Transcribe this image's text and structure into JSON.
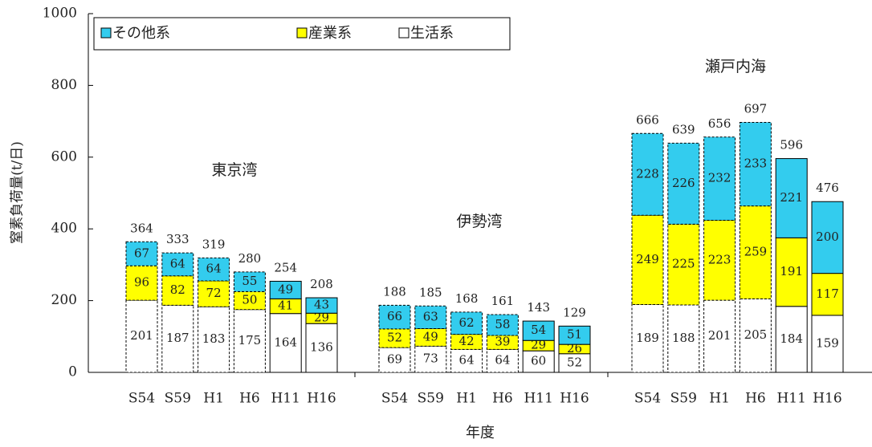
{
  "chart_data": {
    "type": "stacked-bar",
    "y_label": "窒素負荷量(t/日)",
    "x_label": "年度",
    "groups": [
      {
        "name": "東京湾",
        "categories": [
          "S54",
          "S59",
          "H1",
          "H6",
          "H11",
          "H16"
        ]
      },
      {
        "name": "伊勢湾",
        "categories": [
          "S54",
          "S59",
          "H1",
          "H6",
          "H11",
          "H16"
        ]
      },
      {
        "name": "瀬戸内海",
        "categories": [
          "S54",
          "S59",
          "H1",
          "H6",
          "H11",
          "H16"
        ]
      }
    ],
    "series": [
      {
        "name": "生活系",
        "color": "#ffffff",
        "values": [
          201,
          187,
          183,
          175,
          164,
          136,
          69,
          73,
          64,
          64,
          60,
          52,
          189,
          188,
          201,
          205,
          184,
          159
        ]
      },
      {
        "name": "産業系",
        "color": "#ffff00",
        "values": [
          96,
          82,
          72,
          50,
          41,
          29,
          52,
          49,
          42,
          39,
          29,
          26,
          249,
          225,
          223,
          259,
          191,
          117
        ]
      },
      {
        "name": "その他系",
        "color": "#33ccee",
        "values": [
          67,
          64,
          64,
          55,
          49,
          43,
          66,
          63,
          62,
          58,
          54,
          51,
          228,
          226,
          232,
          233,
          221,
          200
        ]
      }
    ],
    "totals": [
      364,
      333,
      319,
      280,
      254,
      208,
      188,
      185,
      168,
      161,
      143,
      129,
      666,
      639,
      656,
      697,
      596,
      476
    ],
    "bar_edges": [
      "dashed",
      "dashed",
      "dashed",
      "dashed",
      "solid",
      "solid",
      "dashed",
      "dashed",
      "dashed",
      "dashed",
      "solid",
      "solid",
      "dashed",
      "dashed",
      "dashed",
      "dashed",
      "solid",
      "solid"
    ],
    "ylim": [
      0,
      1000
    ],
    "yticks": [
      0,
      200,
      400,
      600,
      800,
      1000
    ],
    "legend_order": [
      2,
      1,
      0
    ]
  }
}
